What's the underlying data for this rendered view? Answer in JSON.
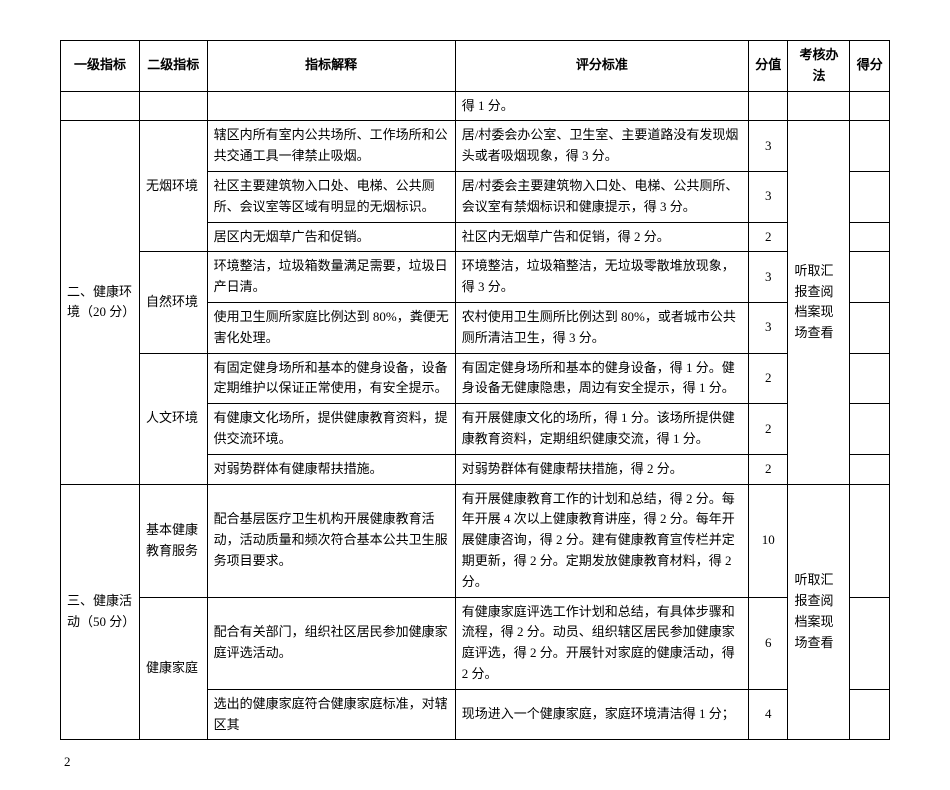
{
  "headers": {
    "l1": "一级指标",
    "l2": "二级指标",
    "expl": "指标解释",
    "std": "评分标准",
    "score": "分值",
    "method": "考核办法",
    "gotten": "得分"
  },
  "carry_row": {
    "std": "得 1 分。"
  },
  "group1": {
    "l1": "二、健康环境（20 分）",
    "method": "听取汇报查阅档案现场查看",
    "sub1": {
      "l2": "无烟环境",
      "r1": {
        "expl": "辖区内所有室内公共场所、工作场所和公共交通工具一律禁止吸烟。",
        "std": "居/村委会办公室、卫生室、主要道路没有发现烟头或者吸烟现象，得 3 分。",
        "score": "3"
      },
      "r2": {
        "expl": "社区主要建筑物入口处、电梯、公共厕所、会议室等区域有明显的无烟标识。",
        "std": "居/村委会主要建筑物入口处、电梯、公共厕所、会议室有禁烟标识和健康提示，得 3 分。",
        "score": "3"
      },
      "r3": {
        "expl": "居区内无烟草广告和促销。",
        "std": "社区内无烟草广告和促销，得 2 分。",
        "score": "2"
      }
    },
    "sub2": {
      "l2": "自然环境",
      "r1": {
        "expl": "环境整洁，垃圾箱数量满足需要，垃圾日产日清。",
        "std": "环境整洁，垃圾箱整洁，无垃圾零散堆放现象，得 3 分。",
        "score": "3"
      },
      "r2": {
        "expl": "使用卫生厕所家庭比例达到 80%，粪便无害化处理。",
        "std": "农村使用卫生厕所比例达到 80%，或者城市公共厕所清洁卫生，得 3 分。",
        "score": "3"
      }
    },
    "sub3": {
      "l2": "人文环境",
      "r1": {
        "expl": "有固定健身场所和基本的健身设备，设备定期维护以保证正常使用，有安全提示。",
        "std": "有固定健身场所和基本的健身设备，得 1 分。健身设备无健康隐患，周边有安全提示，得 1 分。",
        "score": "2"
      },
      "r2": {
        "expl": "有健康文化场所，提供健康教育资料，提供交流环境。",
        "std": "有开展健康文化的场所，得 1 分。该场所提供健康教育资料，定期组织健康交流，得 1 分。",
        "score": "2"
      },
      "r3": {
        "expl": "对弱势群体有健康帮扶措施。",
        "std": "对弱势群体有健康帮扶措施，得 2 分。",
        "score": "2"
      }
    }
  },
  "group2": {
    "l1": "三、健康活动（50 分）",
    "method": "听取汇报查阅档案现场查看",
    "sub1": {
      "l2": "基本健康教育服务",
      "r1": {
        "expl": "配合基层医疗卫生机构开展健康教育活动，活动质量和频次符合基本公共卫生服务项目要求。",
        "std": "有开展健康教育工作的计划和总结，得 2 分。每年开展 4 次以上健康教育讲座，得 2 分。每年开展健康咨询，得 2 分。建有健康教育宣传栏并定期更新，得 2 分。定期发放健康教育材料，得 2 分。",
        "score": "10"
      }
    },
    "sub2": {
      "l2": "健康家庭",
      "r1": {
        "expl": "配合有关部门，组织社区居民参加健康家庭评选活动。",
        "std": "有健康家庭评选工作计划和总结，有具体步骤和流程，得 2 分。动员、组织辖区居民参加健康家庭评选，得 2 分。开展针对家庭的健康活动，得 2 分。",
        "score": "6"
      },
      "r2": {
        "expl": "选出的健康家庭符合健康家庭标准，对辖区其",
        "std": "现场进入一个健康家庭，家庭环境清洁得 1 分；",
        "score": "4"
      }
    }
  },
  "page_number": "2"
}
